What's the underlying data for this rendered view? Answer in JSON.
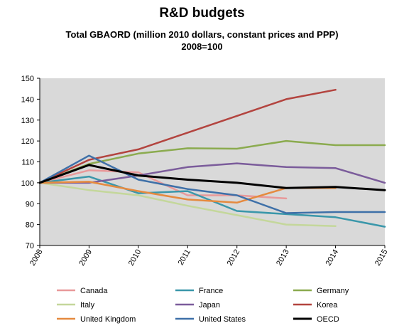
{
  "chart_data": {
    "type": "line",
    "title": "R&D budgets",
    "subtitle_lines": [
      "Total GBAORD (million 2010 dollars, constant prices and PPP)",
      "2008=100"
    ],
    "x": [
      "2008",
      "2009",
      "2010",
      "2011",
      "2012",
      "2013",
      "2014",
      "2015"
    ],
    "ylim": [
      70,
      150
    ],
    "yticks": [
      70,
      80,
      90,
      100,
      110,
      120,
      130,
      140,
      150
    ],
    "grid": false,
    "legend_position": "bottom",
    "series": [
      {
        "name": "Canada",
        "color": "#e8999a",
        "width": 2.5,
        "values": [
          100,
          106,
          105,
          94,
          94,
          92.5,
          null,
          null
        ]
      },
      {
        "name": "France",
        "color": "#3a97aa",
        "width": 2.5,
        "values": [
          100,
          103,
          95,
          96,
          86.5,
          85,
          83.5,
          79
        ]
      },
      {
        "name": "Germany",
        "color": "#8bab4f",
        "width": 2.5,
        "values": [
          100,
          109,
          114,
          116.5,
          116.3,
          120,
          118,
          118
        ]
      },
      {
        "name": "Italy",
        "color": "#c4d79b",
        "width": 2.5,
        "values": [
          100,
          96.5,
          94,
          89,
          84.5,
          80,
          79.3,
          null
        ]
      },
      {
        "name": "Japan",
        "color": "#7b5c9b",
        "width": 2.5,
        "values": [
          100,
          100,
          103.5,
          107.5,
          109.3,
          107.5,
          107,
          100
        ]
      },
      {
        "name": "Korea",
        "color": "#b3443f",
        "width": 2.5,
        "values": [
          100,
          111,
          116,
          124,
          132,
          140,
          144.5,
          null
        ]
      },
      {
        "name": "United Kingdom",
        "color": "#e58a3f",
        "width": 2.5,
        "values": [
          100,
          100.5,
          96,
          92,
          90.5,
          97.5,
          97.5,
          null
        ]
      },
      {
        "name": "United States",
        "color": "#3e70a8",
        "width": 2.5,
        "values": [
          100,
          113,
          101.5,
          97,
          94,
          85.5,
          86,
          86
        ]
      },
      {
        "name": "OECD",
        "color": "#000000",
        "width": 3,
        "values": [
          100,
          108.5,
          103.5,
          101.5,
          100,
          97.5,
          98,
          96.5
        ]
      }
    ]
  }
}
